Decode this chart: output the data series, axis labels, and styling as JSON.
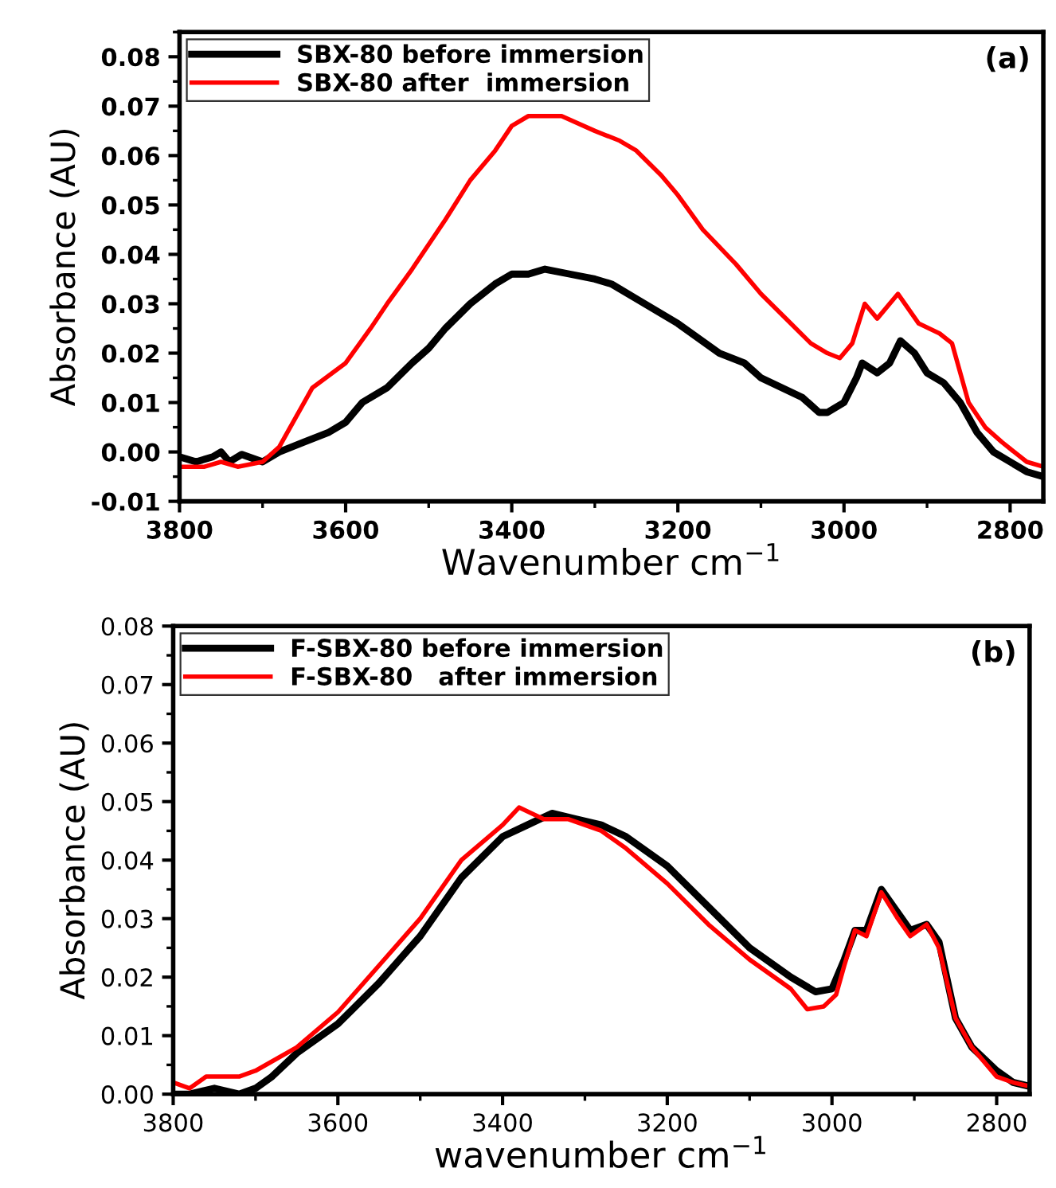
{
  "chart_data": [
    {
      "type": "line",
      "xlabel": "Wavenumber cm$^{−1}$",
      "ylabel": "Absorbance (AU)",
      "annotations": [
        "(a)"
      ],
      "xlim": [
        3800,
        2760
      ],
      "ylim": [
        -0.01,
        0.085
      ],
      "xticks": [
        3800,
        3600,
        3400,
        3200,
        3000,
        2800
      ],
      "yticks": [
        {
          "value": -0.01,
          "label": "-0.01"
        },
        {
          "value": 0,
          "label": "0.00"
        },
        {
          "value": 0.01,
          "label": "0.01"
        },
        {
          "value": 0.02,
          "label": "0.02"
        },
        {
          "value": 0.03,
          "label": "0.03"
        },
        {
          "value": 0.04,
          "label": "0.04"
        },
        {
          "value": 0.05,
          "label": "0.05"
        },
        {
          "value": 0.06,
          "label": "0.06"
        },
        {
          "value": 0.07,
          "label": "0.07"
        },
        {
          "value": 0.08,
          "label": "0.08"
        }
      ],
      "legend": "top left",
      "grid": false,
      "marker": "none",
      "line_style": "solid",
      "series": [
        {
          "name": "SBX-80 before immersion",
          "color": "#000000",
          "x": [
            3800,
            3780,
            3760,
            3750,
            3740,
            3725,
            3700,
            3680,
            3650,
            3620,
            3600,
            3580,
            3550,
            3520,
            3500,
            3480,
            3450,
            3420,
            3400,
            3380,
            3360,
            3330,
            3300,
            3280,
            3250,
            3200,
            3150,
            3120,
            3100,
            3050,
            3030,
            3020,
            3000,
            2985,
            2978,
            2960,
            2945,
            2932,
            2915,
            2900,
            2880,
            2860,
            2840,
            2820,
            2800,
            2780,
            2760
          ],
          "values": [
            -0.001,
            -0.002,
            -0.001,
            0.0,
            -0.002,
            -0.0005,
            -0.002,
            0.0,
            0.002,
            0.004,
            0.006,
            0.01,
            0.013,
            0.018,
            0.021,
            0.025,
            0.03,
            0.034,
            0.036,
            0.036,
            0.037,
            0.036,
            0.035,
            0.034,
            0.031,
            0.026,
            0.02,
            0.018,
            0.015,
            0.011,
            0.008,
            0.008,
            0.01,
            0.015,
            0.018,
            0.016,
            0.018,
            0.0225,
            0.02,
            0.016,
            0.014,
            0.01,
            0.004,
            0.0,
            -0.002,
            -0.004,
            -0.005
          ]
        },
        {
          "name": "SBX-80 after  immersion",
          "color": "#ff0000",
          "x": [
            3800,
            3770,
            3750,
            3730,
            3700,
            3680,
            3660,
            3640,
            3600,
            3570,
            3550,
            3520,
            3500,
            3480,
            3450,
            3420,
            3400,
            3380,
            3360,
            3340,
            3300,
            3270,
            3250,
            3220,
            3200,
            3170,
            3130,
            3100,
            3070,
            3040,
            3020,
            3005,
            2990,
            2975,
            2960,
            2935,
            2910,
            2885,
            2870,
            2850,
            2830,
            2810,
            2780,
            2760
          ],
          "values": [
            -0.003,
            -0.003,
            -0.002,
            -0.003,
            -0.002,
            0.001,
            0.007,
            0.013,
            0.018,
            0.025,
            0.03,
            0.037,
            0.042,
            0.047,
            0.055,
            0.061,
            0.066,
            0.068,
            0.068,
            0.068,
            0.065,
            0.063,
            0.061,
            0.056,
            0.052,
            0.045,
            0.038,
            0.032,
            0.027,
            0.022,
            0.02,
            0.019,
            0.022,
            0.03,
            0.027,
            0.032,
            0.026,
            0.024,
            0.022,
            0.01,
            0.005,
            0.002,
            -0.002,
            -0.003
          ]
        }
      ]
    },
    {
      "type": "line",
      "xlabel": "wavenumber cm$^{−1}$",
      "ylabel": "Absorbance (AU)",
      "annotations": [
        "(b)"
      ],
      "xlim": [
        3800,
        2760
      ],
      "ylim": [
        0,
        0.08
      ],
      "xticks": [
        3800,
        3600,
        3400,
        3200,
        3000,
        2800
      ],
      "yticks": [
        {
          "value": 0,
          "label": "0.00"
        },
        {
          "value": 0.01,
          "label": "0.01"
        },
        {
          "value": 0.02,
          "label": "0.02"
        },
        {
          "value": 0.03,
          "label": "0.03"
        },
        {
          "value": 0.04,
          "label": "0.04"
        },
        {
          "value": 0.05,
          "label": "0.05"
        },
        {
          "value": 0.06,
          "label": "0.06"
        },
        {
          "value": 0.07,
          "label": "0.07"
        },
        {
          "value": 0.08,
          "label": "0.08"
        }
      ],
      "legend": "top left",
      "grid": false,
      "marker": "none",
      "line_style": "solid",
      "series": [
        {
          "name": "F-SBX-80 before immersion",
          "color": "#000000",
          "x": [
            3800,
            3780,
            3750,
            3720,
            3700,
            3680,
            3650,
            3600,
            3550,
            3500,
            3450,
            3400,
            3370,
            3340,
            3310,
            3280,
            3250,
            3200,
            3150,
            3100,
            3050,
            3020,
            3000,
            2985,
            2972,
            2958,
            2940,
            2920,
            2905,
            2885,
            2870,
            2850,
            2830,
            2800,
            2780,
            2765
          ],
          "values": [
            0.0,
            0.0,
            0.001,
            0.0,
            0.001,
            0.003,
            0.007,
            0.012,
            0.019,
            0.027,
            0.037,
            0.044,
            0.046,
            0.048,
            0.047,
            0.046,
            0.044,
            0.039,
            0.032,
            0.025,
            0.02,
            0.0175,
            0.018,
            0.023,
            0.028,
            0.028,
            0.035,
            0.031,
            0.028,
            0.029,
            0.026,
            0.013,
            0.008,
            0.004,
            0.002,
            0.0015
          ]
        },
        {
          "name": "F-SBX-80   after immersion",
          "color": "#ff0000",
          "x": [
            3800,
            3780,
            3760,
            3740,
            3720,
            3700,
            3650,
            3600,
            3550,
            3500,
            3450,
            3400,
            3380,
            3350,
            3320,
            3280,
            3250,
            3200,
            3150,
            3100,
            3050,
            3030,
            3010,
            2995,
            2985,
            2972,
            2958,
            2940,
            2920,
            2905,
            2885,
            2870,
            2850,
            2830,
            2800,
            2780,
            2765
          ],
          "values": [
            0.002,
            0.001,
            0.003,
            0.003,
            0.003,
            0.004,
            0.008,
            0.014,
            0.022,
            0.03,
            0.04,
            0.046,
            0.049,
            0.047,
            0.047,
            0.045,
            0.042,
            0.036,
            0.029,
            0.023,
            0.018,
            0.0145,
            0.015,
            0.017,
            0.022,
            0.028,
            0.027,
            0.0345,
            0.03,
            0.027,
            0.029,
            0.025,
            0.013,
            0.008,
            0.003,
            0.002,
            0.0015
          ]
        }
      ]
    }
  ]
}
